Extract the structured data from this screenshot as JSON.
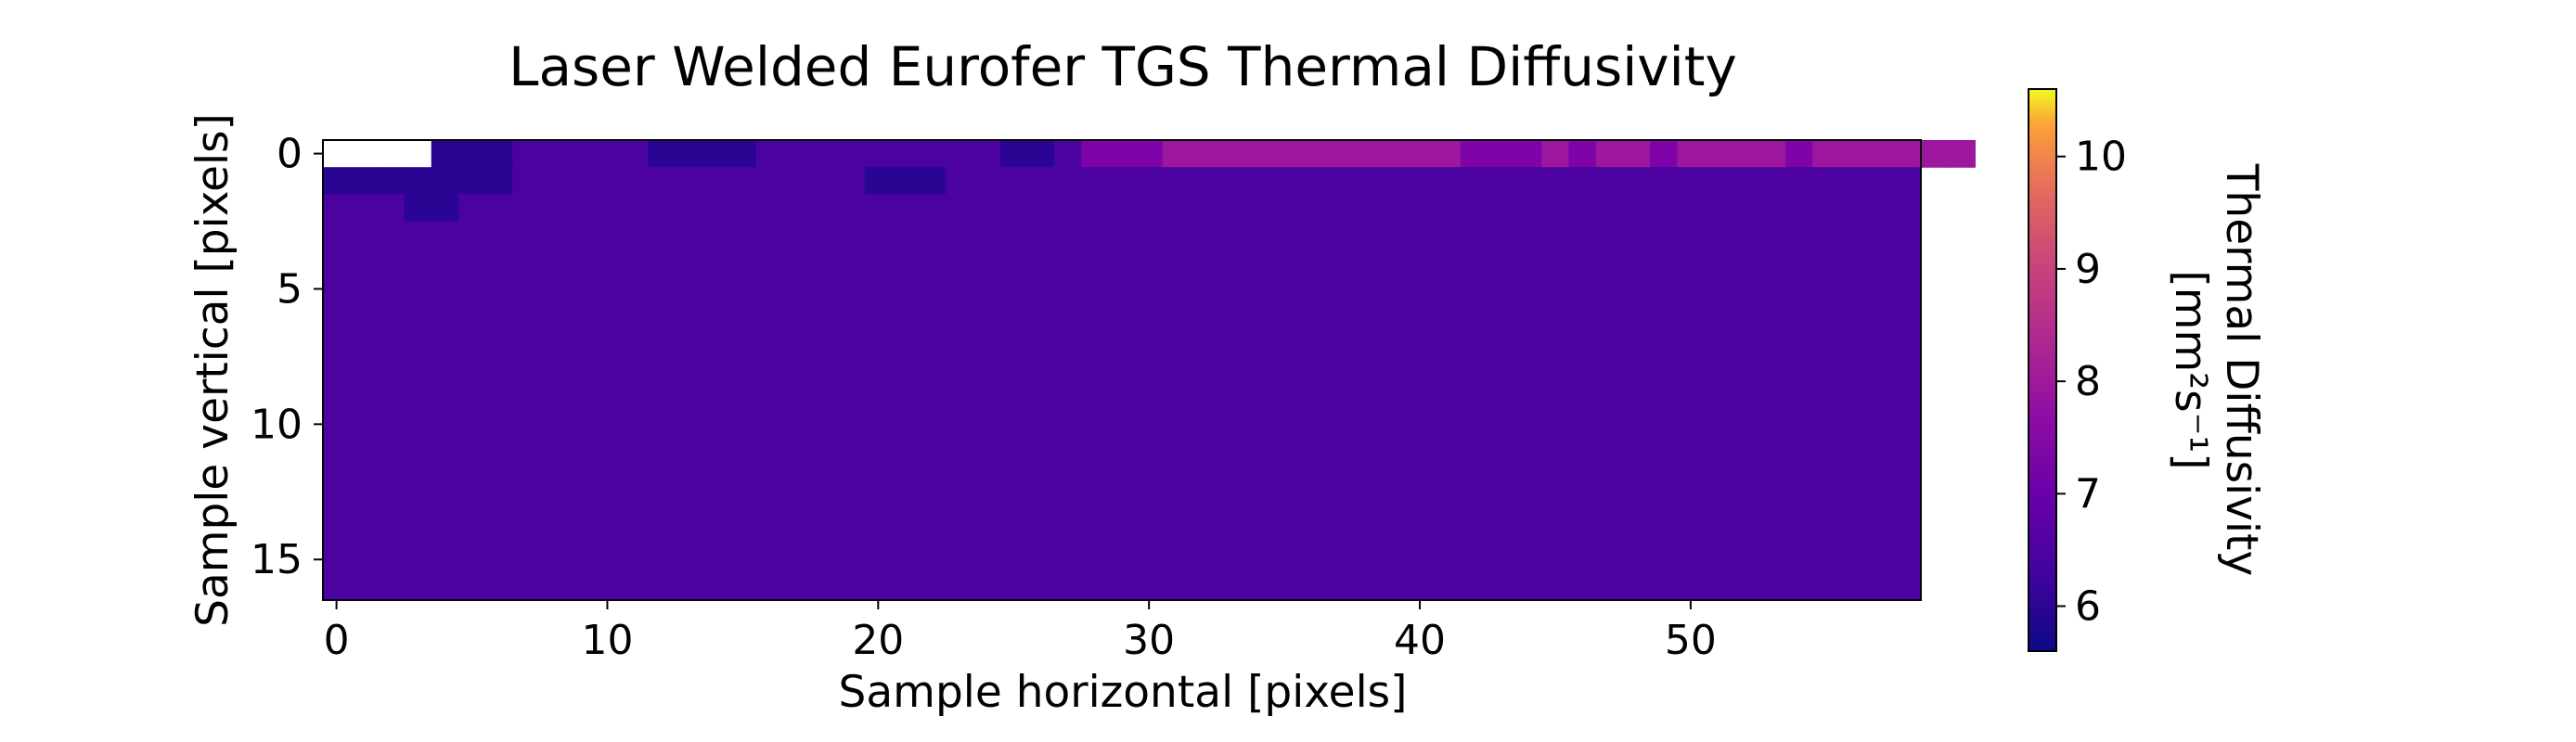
{
  "chart_data": {
    "type": "heatmap",
    "title": "Laser Welded Eurofer TGS Thermal Diffusivity",
    "xlabel": "Sample horizontal [pixels]",
    "ylabel": "Sample vertical [pixels]",
    "colorbar_label_line1": "Thermal Diffusivity",
    "colorbar_label_line2": "[mm²s⁻¹]",
    "colormap": "plasma",
    "xlim": [
      -0.5,
      58.5
    ],
    "ylim": [
      16.5,
      -0.5
    ],
    "x_ticks": [
      0,
      10,
      20,
      30,
      40,
      50
    ],
    "y_ticks": [
      0,
      5,
      10,
      15
    ],
    "colorbar_range": [
      5.6,
      10.6
    ],
    "colorbar_ticks": [
      6,
      7,
      8,
      9,
      10
    ],
    "grid": false,
    "rows": [
      "    aaabbbbbaaaabbbbbbbbbaabcccdddddddddddcccdcddcddddcdddddd",
      "aaaaaaabbbbbbbbbbbbbaaabbbbbbbbbbbbbbbbbbbbbbbbbbbbbbbbbbbb",
      "bbbaabbbbbbbbbbbbbbbbbbbbbbbbbbbbbbbbbbbbbbbbbbbbbbbbbbbbbb",
      "bbbbbbbbbbbbbbbbbbbbbbbbbbbbbbbbbbbbbbbbbbbbbbbbbbbbbbbbbbb",
      "bbbbbbbbbbbbbbbbbbbbbbbbbbbbbbbbbbbbbbbbbbbbbbbbbbbbbbbbbbb",
      "bbbbbbbbbbbbbbbbbbbbbbbbbbbbbbbbbbbbbbbbbbbbbbbbbbbbbbbbbbb",
      "bbbbbbbbbbbbbbbbbbbbbbbbbbbbbbbbbbbbbbbbbbbbbbbbbbbbbbbbbbb",
      "bbbbbbbbbbbbbbbbbbbbbbbbbbbbbbbbbbbbbbbbbbbbbbbbbbbbbbbbbbb",
      "bbbbbbbbbbbbbbbbbbbbbbbbbbbbbbbbbbbbbbbbbbbbbbbbbbbbbbbbbbb",
      "bbbbbbbbbbbbbbbbbbbbbbbbbbbbbbbbbbbbbbbbbbbbbbbbbbbbbbbbbbb",
      "bbbbbbbbbbbbbbbbbbbbbbbbbbbbbbbbbbbbbbbbbbbbbbbbbbbbbbbbbbb",
      "bbbbbbbbbbbbbbbbbbbbbbbbbbbbbbbbbbbbbbbbbbbbbbbbbbbbbbbbbbb",
      "bbbbbbbbbbbbbbbbbbbbbbbbbbbbbbbbbbbbbbbbbbbbbbbbbbbbbbbbbbb",
      "bbbbbbbbbbbbbbbbbbbbbbbbbbbbbbbbbbbbbbbbbbbbbbbbbbbbbbbbbbb",
      "bbbbbbbbbbbbbbbbbbbbbbbbbbbbbbbbbbbbbbbbbbbbbbbbbbbbbbbbbbb",
      "bbbbbbbbbbbbbbbbbbbbbbbbbbbbbbbbbbbbbbbbbbbbbbbbbbbbbbbbbbb",
      "bbbbbbbbbbbbbbbbbbbbbbbbbbbbbbbbbbbbbbbbbbbbbbbbbbbbbbbbbbb"
    ]
  }
}
